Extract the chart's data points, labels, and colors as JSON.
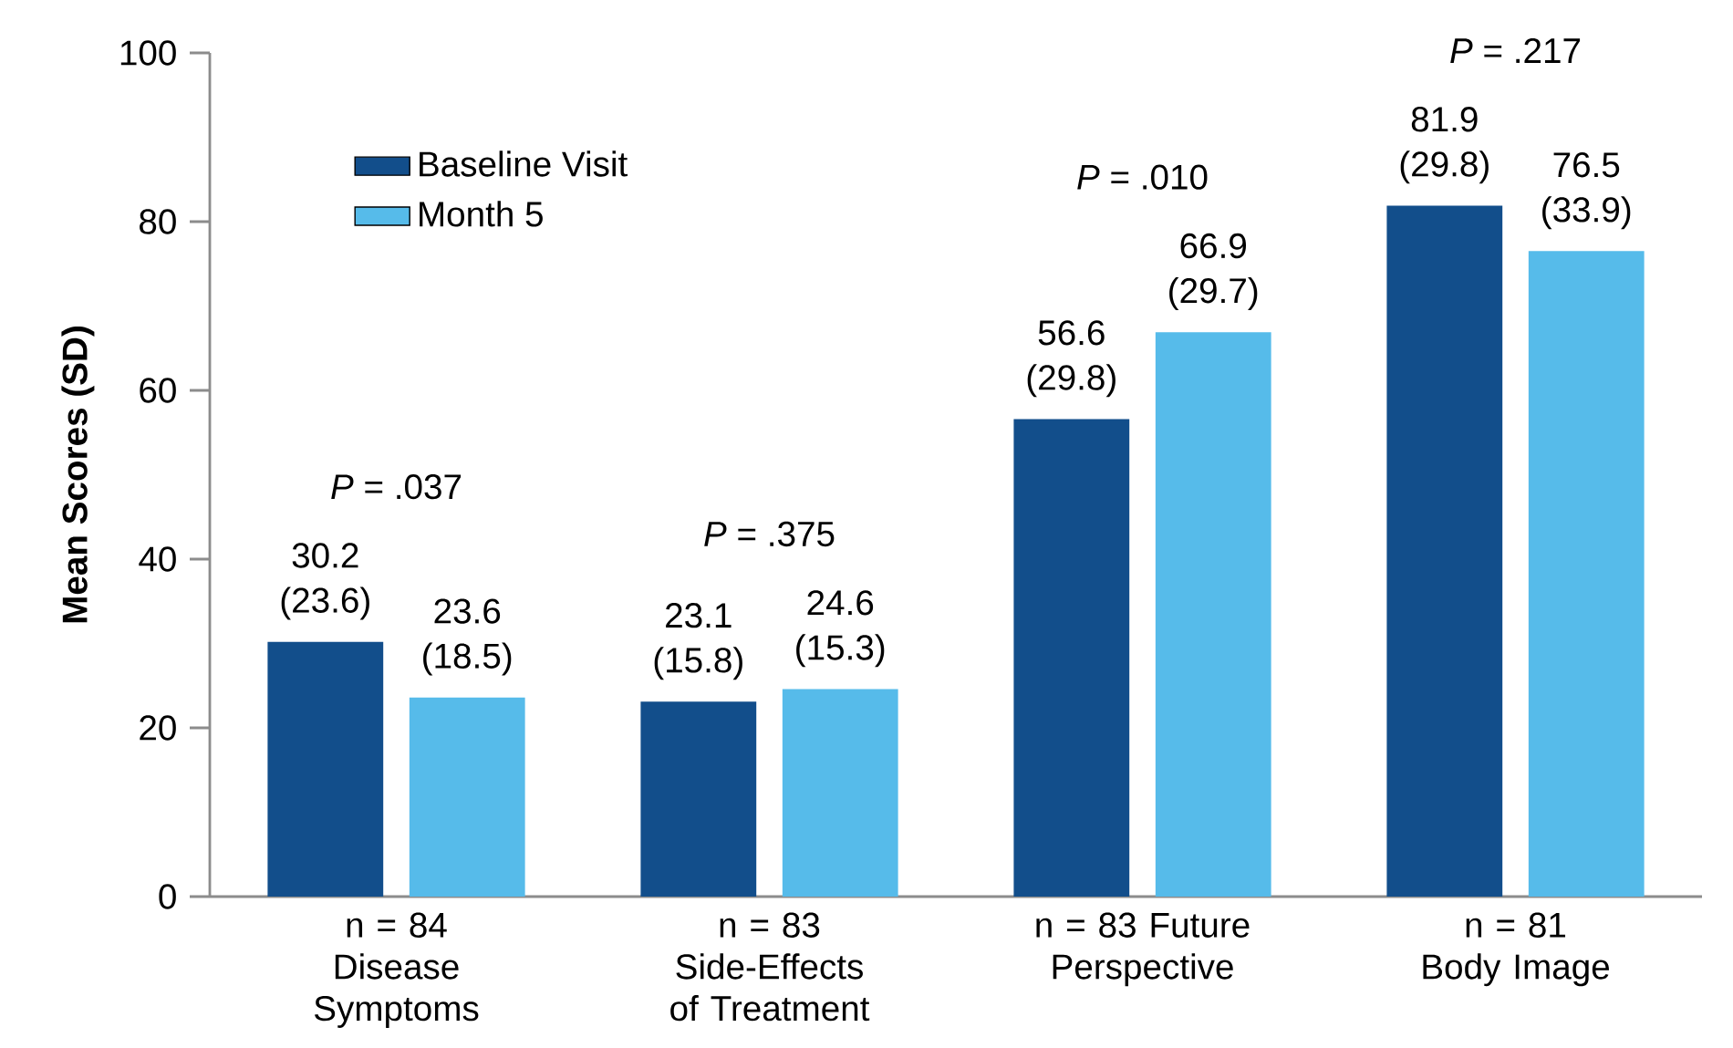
{
  "chart_data": {
    "type": "bar",
    "ylabel": "Mean Scores (SD)",
    "categories": [
      "n = 84 Disease Symptoms",
      "n = 83 Side-Effects of Treatment",
      "n = 83 Future Perspective",
      "n = 81 Body Image"
    ],
    "series": [
      {
        "name": "Baseline Visit",
        "color": "#124e8b",
        "values": [
          30.2,
          23.1,
          56.6,
          81.9
        ],
        "value_labels": [
          "30.2 (23.6)",
          "23.1 (15.8)",
          "56.6 (29.8)",
          "81.9 (29.8)"
        ]
      },
      {
        "name": "Month 5",
        "color": "#56bbea",
        "values": [
          23.6,
          24.6,
          66.9,
          76.5
        ],
        "value_labels": [
          "23.6 (18.5)",
          "24.6 (15.3)",
          "66.9 (29.7)",
          "76.5 (33.9)"
        ]
      }
    ],
    "ylim": [
      0,
      100
    ],
    "yticks": [
      0,
      20,
      40,
      60,
      80,
      100
    ],
    "annotations": [
      "*P* = .037",
      "*P* = .375",
      "*P* = .010",
      "*P* = .217"
    ],
    "legend": "top left",
    "grid": false
  }
}
